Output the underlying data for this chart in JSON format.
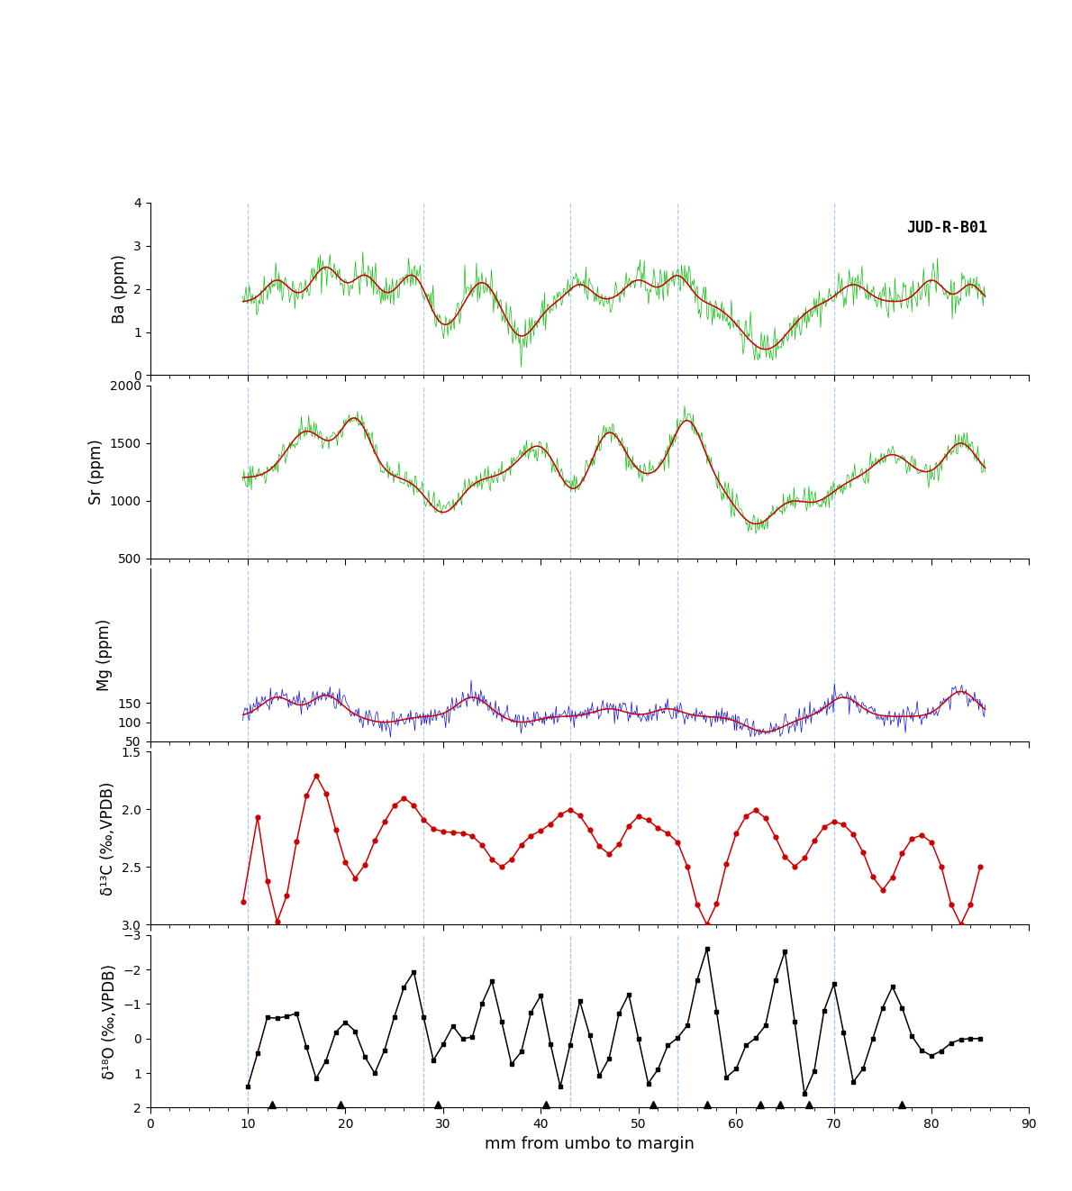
{
  "xlim": [
    0,
    90
  ],
  "xticks": [
    0,
    10,
    20,
    30,
    40,
    50,
    60,
    70,
    80,
    90
  ],
  "xlabel": "mm from umbo to margin",
  "dashed_lines": [
    10,
    28,
    43,
    54,
    70
  ],
  "label_id": "JUD-R-B01",
  "panels": [
    {
      "ylabel": "Ba (ppm)",
      "ylim": [
        0,
        4
      ],
      "yticks": [
        0,
        1,
        2,
        3,
        4
      ],
      "color_raw": "#00bb00",
      "color_smooth": "#cc0000",
      "height_ratio": 3
    },
    {
      "ylabel": "Sr (ppm)",
      "ylim": [
        500,
        2000
      ],
      "yticks": [
        500,
        1000,
        1500,
        2000
      ],
      "color_raw": "#00bb00",
      "color_smooth": "#cc0000",
      "height_ratio": 3
    },
    {
      "ylabel": "Mg (ppm)",
      "ylim": [
        50,
        500
      ],
      "yticks": [
        50,
        100,
        150
      ],
      "color_raw": "#0000ee",
      "color_smooth": "#cc0000",
      "height_ratio": 3
    },
    {
      "ylabel": "δ¹³C (‰,VPDB)",
      "ylim": [
        3.0,
        1.5
      ],
      "yticks": [
        1.5,
        2.0,
        2.5,
        3.0
      ],
      "color_raw": "#cc0000",
      "color_smooth": null,
      "has_markers": true,
      "height_ratio": 3
    },
    {
      "ylabel": "δ¹⁸O (‰,VPDB)",
      "ylim": [
        2,
        -3
      ],
      "yticks": [
        2,
        1,
        0,
        -1,
        -2,
        -3
      ],
      "color_raw": "#000000",
      "color_smooth": null,
      "has_markers": true,
      "has_triangles": true,
      "height_ratio": 3
    }
  ],
  "triangle_x": [
    12.5,
    19.5,
    29.5,
    40.5,
    51.5,
    57.0,
    62.5,
    64.5,
    67.5,
    77.0
  ],
  "dashed_color": "#aaccee",
  "fig_width": 11.9,
  "fig_height": 13.22,
  "top_space": 0.17
}
